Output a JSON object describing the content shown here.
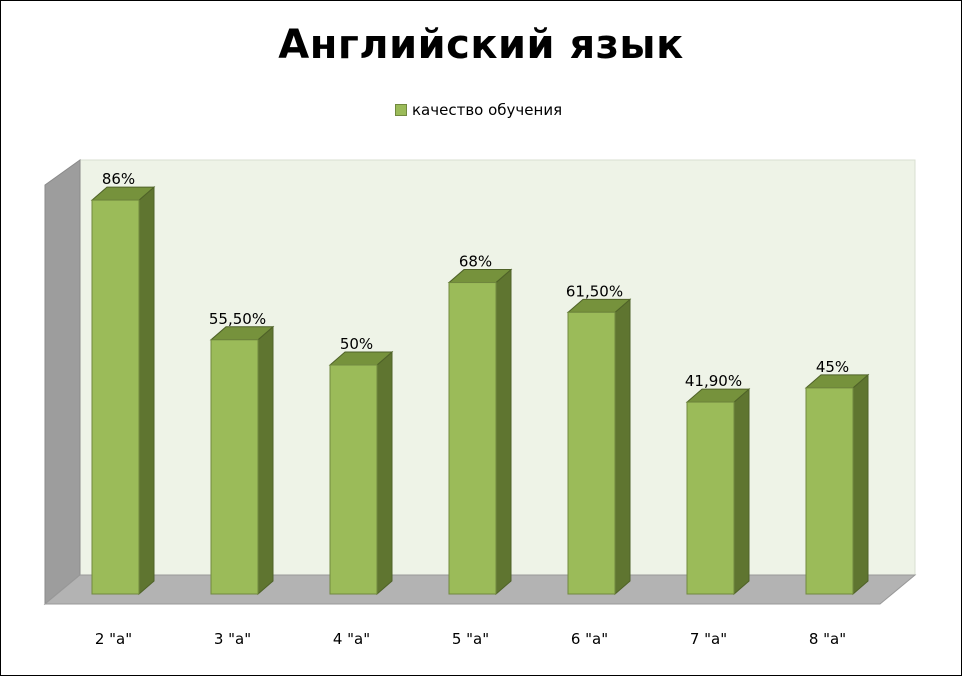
{
  "chart_data": {
    "type": "bar",
    "title": "Английский язык",
    "categories": [
      "2 \"а\"",
      "3 \"а\"",
      "4 \"а\"",
      "5 \"а\"",
      "6 \"а\"",
      "7 \"а\"",
      "8 \"а\""
    ],
    "series": [
      {
        "name": "качество обучения",
        "values": [
          86,
          55.5,
          50,
          68,
          61.5,
          41.9,
          45
        ],
        "labels": [
          "86%",
          "55,50%",
          "50%",
          "68%",
          "61,50%",
          "41,90%",
          "45%"
        ]
      }
    ],
    "ylim": [
      0,
      100
    ],
    "legend": "top-center",
    "grid": false,
    "style": "3d",
    "colors": {
      "bar_front": "#9bbb59",
      "bar_side": "#5f7530",
      "bar_top": "#76923c",
      "back_wall": "#eef3e7",
      "floor": "#b3b3b3",
      "side_wall": "#9d9d9d"
    }
  }
}
